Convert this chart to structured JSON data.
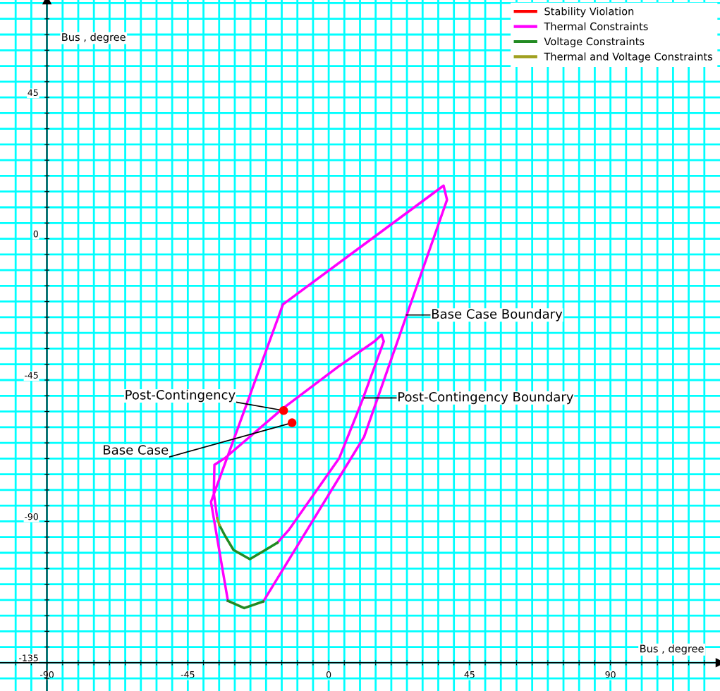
{
  "chart_data": {
    "type": "line",
    "xlabel": "Bus , degree",
    "ylabel": "Bus , degree",
    "xlim": [
      -105,
      125
    ],
    "ylim": [
      -144,
      76
    ],
    "xticks": [
      {
        "value": -100,
        "label": null
      },
      {
        "value": -95,
        "label": null
      },
      -90,
      {
        "value": -85,
        "label": null
      },
      {
        "value": -80,
        "label": null
      },
      {
        "value": -75,
        "label": null
      },
      {
        "value": -70,
        "label": null
      },
      {
        "value": -65,
        "label": null
      },
      {
        "value": -60,
        "label": null
      },
      {
        "value": -55,
        "label": null
      },
      {
        "value": -50,
        "label": null
      },
      -45,
      {
        "value": -40,
        "label": null
      },
      {
        "value": -35,
        "label": null
      },
      {
        "value": -30,
        "label": null
      },
      {
        "value": -25,
        "label": null
      },
      {
        "value": -20,
        "label": null
      },
      {
        "value": -15,
        "label": null
      },
      {
        "value": -10,
        "label": null
      },
      {
        "value": -5,
        "label": null
      },
      0,
      {
        "value": 5,
        "label": null
      },
      {
        "value": 10,
        "label": null
      },
      {
        "value": 15,
        "label": null
      },
      {
        "value": 20,
        "label": null
      },
      {
        "value": 25,
        "label": null
      },
      {
        "value": 30,
        "label": null
      },
      {
        "value": 35,
        "label": null
      },
      {
        "value": 40,
        "label": null
      },
      45,
      {
        "value": 50,
        "label": null
      },
      {
        "value": 55,
        "label": null
      },
      {
        "value": 60,
        "label": null
      },
      {
        "value": 65,
        "label": null
      },
      {
        "value": 70,
        "label": null
      },
      {
        "value": 75,
        "label": null
      },
      {
        "value": 80,
        "label": null
      },
      {
        "value": 85,
        "label": null
      },
      90,
      {
        "value": 95,
        "label": null
      },
      {
        "value": 100,
        "label": null
      },
      {
        "value": 105,
        "label": null
      },
      {
        "value": 110,
        "label": null
      },
      {
        "value": 115,
        "label": null
      },
      {
        "value": 120,
        "label": null
      }
    ],
    "yticks": [
      {
        "value": -140,
        "label": null
      },
      -135,
      {
        "value": -130,
        "label": null
      },
      {
        "value": -125,
        "label": null
      },
      {
        "value": -120,
        "label": null
      },
      {
        "value": -115,
        "label": null
      },
      {
        "value": -110,
        "label": null
      },
      {
        "value": -105,
        "label": null
      },
      {
        "value": -100,
        "label": null
      },
      {
        "value": -95,
        "label": null
      },
      -90,
      {
        "value": -85,
        "label": null
      },
      {
        "value": -80,
        "label": null
      },
      {
        "value": -75,
        "label": null
      },
      {
        "value": -70,
        "label": null
      },
      {
        "value": -65,
        "label": null
      },
      {
        "value": -60,
        "label": null
      },
      {
        "value": -55,
        "label": null
      },
      {
        "value": -50,
        "label": null
      },
      -45,
      {
        "value": -40,
        "label": null
      },
      {
        "value": -35,
        "label": null
      },
      {
        "value": -30,
        "label": null
      },
      {
        "value": -25,
        "label": null
      },
      {
        "value": -20,
        "label": null
      },
      {
        "value": -15,
        "label": null
      },
      {
        "value": -10,
        "label": null
      },
      {
        "value": -5,
        "label": null
      },
      0,
      {
        "value": 5,
        "label": null
      },
      {
        "value": 10,
        "label": null
      },
      {
        "value": 15,
        "label": null
      },
      {
        "value": 20,
        "label": null
      },
      {
        "value": 25,
        "label": null
      },
      {
        "value": 30,
        "label": null
      },
      {
        "value": 35,
        "label": null
      },
      {
        "value": 40,
        "label": null
      },
      45,
      {
        "value": 50,
        "label": null
      },
      {
        "value": 55,
        "label": null
      },
      {
        "value": 60,
        "label": null
      },
      {
        "value": 65,
        "label": null
      },
      {
        "value": 70,
        "label": null
      },
      {
        "value": 75,
        "label": null
      }
    ],
    "grid": true,
    "legend": "top right",
    "line_style": "solid",
    "series": [
      {
        "name": "Stability Violation",
        "type": "scatter",
        "marker": "circle",
        "color": "#ff0000",
        "x": [
          -14.4,
          -11.7
        ],
        "values": [
          -54.7,
          -58.6
        ]
      },
      {
        "name": "Thermal Constraints",
        "color": "#ff00ff",
        "x": [
          -32.2,
          -37.6,
          -14.6,
          36.7,
          37.8,
          11.3,
          -20.9,
          null,
          -16.4,
          -12.8,
          3.4,
          10.6,
          17.6,
          16.9,
          14.6,
          3.4,
          -14.6,
          -33.1,
          -36.5,
          -36.7,
          -35.6
        ],
        "values": [
          -115.3,
          -83.8,
          -20.9,
          16.9,
          12.4,
          -63.1,
          -115.5,
          null,
          -96.8,
          -92.8,
          -69.8,
          -51.8,
          -32.7,
          -30.6,
          -32.7,
          -40.5,
          -54,
          -69.8,
          -72,
          -81,
          -89
        ]
      },
      {
        "name": "Voltage Constraints",
        "color": "#228b22",
        "x": [
          -20.9,
          -27.0,
          -32.2,
          null,
          -16.4,
          -20.9,
          -25.2,
          -30.4,
          -33.1,
          -34.9
        ],
        "values": [
          -115.5,
          -117.6,
          -115.3,
          null,
          -96.8,
          -99.5,
          -102,
          -99.1,
          -94.6,
          -91.2
        ]
      },
      {
        "name": "Thermal and Voltage Constraints",
        "color": "#a0a020",
        "x": [
          -34.9,
          -35.6
        ],
        "values": [
          -91.2,
          -89
        ]
      }
    ],
    "annotations": [
      {
        "text": "Base Case Boundary",
        "x": 24.8,
        "y": -24.3
      },
      {
        "text": "Post-Contingency Boundary",
        "x": 11.3,
        "y": -50.7
      },
      {
        "text": "Post-Contingency",
        "x": -14.4,
        "y": -54.7
      },
      {
        "text": "Base Case",
        "x": -11.7,
        "y": -58.6
      }
    ]
  }
}
